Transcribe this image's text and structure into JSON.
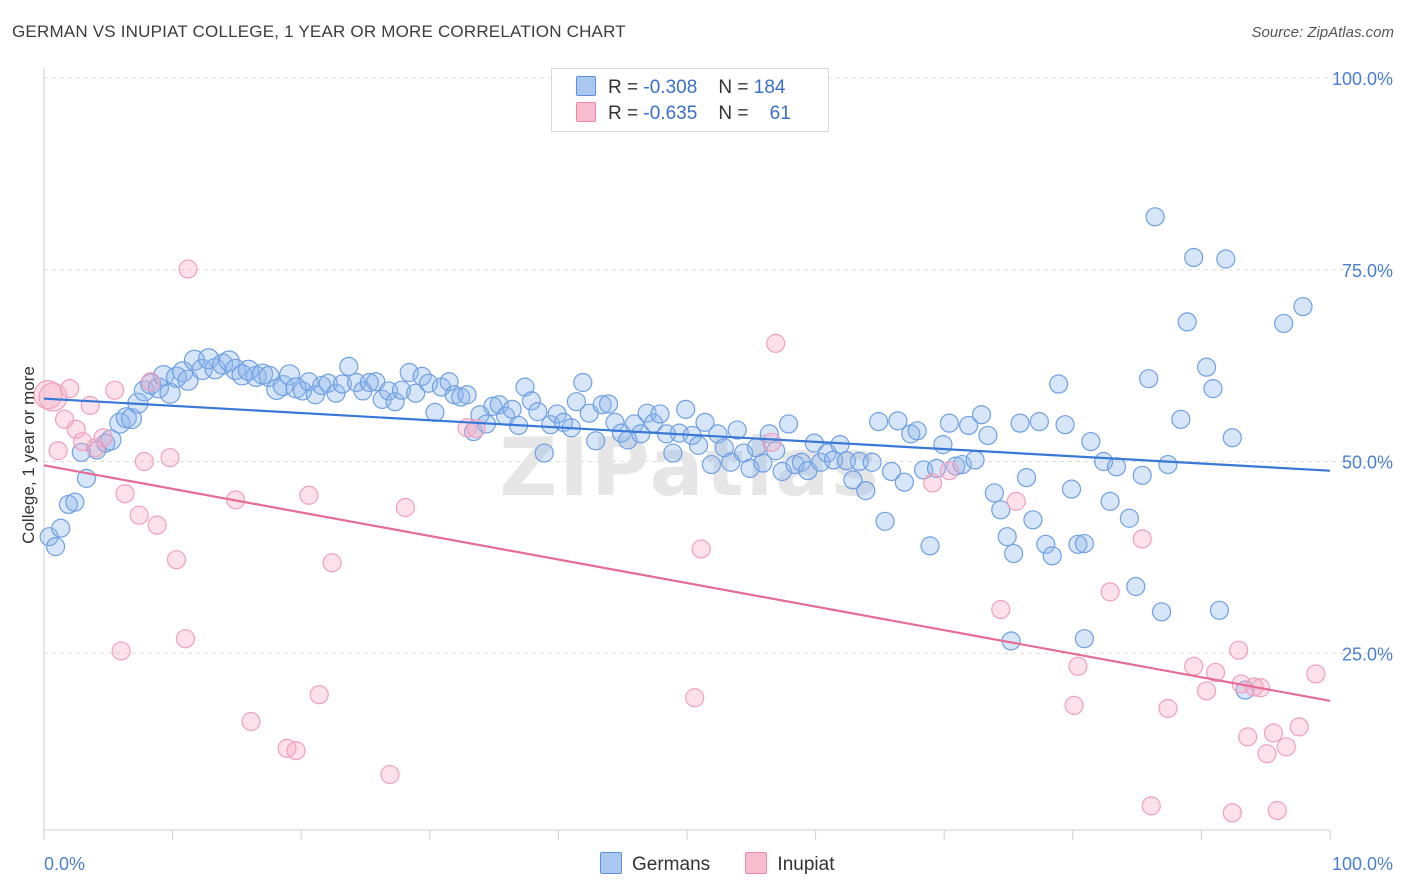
{
  "title": "GERMAN VS INUPIAT COLLEGE, 1 YEAR OR MORE CORRELATION CHART",
  "source": "Source: ZipAtlas.com",
  "watermark": "ZIPatlas",
  "legend": {
    "rows": [
      {
        "r_label": "R =",
        "r_value": "-0.308",
        "n_label": "N =",
        "n_value": "184",
        "color": "#a9c7ef",
        "border": "#5b8fd9"
      },
      {
        "r_label": "R =",
        "r_value": "-0.635",
        "n_label": "N =",
        "n_value": "61",
        "color": "#f7bccd",
        "border": "#e88aa6"
      }
    ]
  },
  "bottom_legend": [
    {
      "label": "Germans",
      "color": "#a9c7ef",
      "border": "#5b8fd9"
    },
    {
      "label": "Inupiat",
      "color": "#f7bccd",
      "border": "#e88aa6"
    }
  ],
  "chart_data": {
    "type": "scatter",
    "title": "GERMAN VS INUPIAT COLLEGE, 1 YEAR OR MORE CORRELATION CHART",
    "xlabel": "",
    "ylabel": "College, 1 year or more",
    "x_tick_labels": [
      "0.0%",
      "100.0%"
    ],
    "y_tick_labels": [
      "100.0%",
      "75.0%",
      "50.0%",
      "25.0%"
    ],
    "xlim": [
      0,
      100
    ],
    "ylim": [
      0,
      100
    ],
    "grid": true,
    "series": [
      {
        "name": "Germans",
        "color": "#6fa0e4",
        "trend": {
          "x": [
            0,
            100
          ],
          "y": [
            58.2,
            48.8
          ],
          "color": "#3a78d6"
        },
        "points": [
          [
            0.4,
            40.2
          ],
          [
            0.9,
            38.9
          ],
          [
            1.3,
            41.3
          ],
          [
            1.9,
            44.4
          ],
          [
            2.4,
            44.7
          ],
          [
            2.9,
            51.2
          ],
          [
            3.3,
            47.8
          ],
          [
            4.1,
            51.5
          ],
          [
            4.8,
            52.4
          ],
          [
            5.2,
            52.8
          ],
          [
            5.9,
            55.0
          ],
          [
            6.4,
            55.7
          ],
          [
            6.8,
            55.6
          ],
          [
            7.3,
            57.6
          ],
          [
            7.8,
            59.2
          ],
          [
            8.3,
            60.1
          ],
          [
            8.9,
            59.6
          ],
          [
            9.3,
            61.2
          ],
          [
            9.8,
            58.9
          ],
          [
            10.3,
            61.0
          ],
          [
            10.8,
            61.7
          ],
          [
            11.2,
            60.6
          ],
          [
            11.7,
            63.2
          ],
          [
            12.3,
            62.0
          ],
          [
            12.8,
            63.4
          ],
          [
            13.3,
            62.1
          ],
          [
            13.9,
            62.7
          ],
          [
            14.4,
            63.1
          ],
          [
            14.9,
            62.0
          ],
          [
            15.4,
            61.3
          ],
          [
            15.9,
            61.9
          ],
          [
            16.5,
            61.1
          ],
          [
            17.0,
            61.4
          ],
          [
            17.5,
            61.1
          ],
          [
            18.1,
            59.4
          ],
          [
            18.6,
            59.9
          ],
          [
            19.1,
            61.3
          ],
          [
            19.6,
            59.6
          ],
          [
            20.1,
            59.2
          ],
          [
            20.6,
            60.4
          ],
          [
            21.1,
            58.7
          ],
          [
            21.6,
            59.9
          ],
          [
            22.1,
            60.2
          ],
          [
            22.7,
            58.9
          ],
          [
            23.2,
            60.1
          ],
          [
            23.7,
            62.4
          ],
          [
            24.3,
            60.3
          ],
          [
            24.8,
            59.2
          ],
          [
            25.3,
            60.3
          ],
          [
            25.8,
            60.4
          ],
          [
            26.3,
            58.1
          ],
          [
            26.8,
            59.2
          ],
          [
            27.3,
            57.8
          ],
          [
            27.8,
            59.3
          ],
          [
            28.4,
            61.6
          ],
          [
            28.9,
            58.9
          ],
          [
            29.4,
            61.1
          ],
          [
            29.9,
            60.2
          ],
          [
            30.4,
            56.4
          ],
          [
            30.9,
            59.7
          ],
          [
            31.5,
            60.4
          ],
          [
            31.9,
            58.7
          ],
          [
            32.4,
            58.4
          ],
          [
            32.9,
            58.7
          ],
          [
            33.4,
            53.9
          ],
          [
            33.9,
            56.1
          ],
          [
            34.4,
            54.9
          ],
          [
            34.9,
            57.2
          ],
          [
            35.4,
            57.4
          ],
          [
            35.9,
            55.9
          ],
          [
            36.4,
            56.8
          ],
          [
            36.9,
            54.7
          ],
          [
            37.4,
            59.7
          ],
          [
            37.9,
            57.9
          ],
          [
            38.4,
            56.5
          ],
          [
            38.9,
            51.1
          ],
          [
            39.4,
            54.8
          ],
          [
            39.9,
            56.2
          ],
          [
            40.4,
            55.1
          ],
          [
            41.0,
            54.4
          ],
          [
            41.4,
            57.8
          ],
          [
            41.9,
            60.3
          ],
          [
            42.4,
            56.3
          ],
          [
            42.9,
            52.7
          ],
          [
            43.4,
            57.4
          ],
          [
            43.9,
            57.5
          ],
          [
            44.4,
            55.1
          ],
          [
            44.9,
            53.7
          ],
          [
            45.4,
            52.8
          ],
          [
            45.9,
            54.9
          ],
          [
            46.4,
            53.6
          ],
          [
            46.9,
            56.3
          ],
          [
            47.4,
            55.0
          ],
          [
            47.9,
            56.2
          ],
          [
            48.4,
            53.6
          ],
          [
            48.9,
            51.1
          ],
          [
            49.4,
            53.7
          ],
          [
            49.9,
            56.8
          ],
          [
            50.4,
            53.4
          ],
          [
            50.9,
            52.1
          ],
          [
            51.4,
            55.1
          ],
          [
            51.9,
            49.6
          ],
          [
            52.4,
            53.6
          ],
          [
            52.9,
            51.8
          ],
          [
            53.4,
            49.9
          ],
          [
            53.9,
            54.1
          ],
          [
            54.4,
            51.1
          ],
          [
            54.9,
            49.1
          ],
          [
            55.4,
            51.8
          ],
          [
            55.9,
            49.8
          ],
          [
            56.4,
            53.6
          ],
          [
            56.9,
            51.4
          ],
          [
            57.4,
            48.7
          ],
          [
            57.9,
            54.9
          ],
          [
            58.4,
            49.6
          ],
          [
            58.9,
            49.9
          ],
          [
            59.4,
            48.8
          ],
          [
            59.9,
            52.4
          ],
          [
            60.4,
            49.9
          ],
          [
            60.9,
            51.1
          ],
          [
            61.4,
            50.2
          ],
          [
            61.9,
            52.2
          ],
          [
            62.4,
            50.1
          ],
          [
            62.9,
            47.6
          ],
          [
            63.4,
            50.0
          ],
          [
            63.9,
            46.2
          ],
          [
            64.4,
            49.9
          ],
          [
            64.9,
            55.2
          ],
          [
            65.4,
            42.2
          ],
          [
            65.9,
            48.7
          ],
          [
            66.4,
            55.3
          ],
          [
            66.9,
            47.3
          ],
          [
            67.4,
            53.6
          ],
          [
            67.9,
            54.0
          ],
          [
            68.4,
            48.9
          ],
          [
            68.9,
            39.0
          ],
          [
            69.4,
            49.1
          ],
          [
            69.9,
            52.2
          ],
          [
            70.4,
            55.0
          ],
          [
            70.9,
            49.4
          ],
          [
            71.4,
            49.6
          ],
          [
            71.9,
            54.7
          ],
          [
            72.4,
            50.2
          ],
          [
            72.9,
            56.1
          ],
          [
            73.4,
            53.4
          ],
          [
            73.9,
            45.9
          ],
          [
            74.4,
            43.7
          ],
          [
            74.9,
            40.2
          ],
          [
            75.4,
            38.0
          ],
          [
            75.9,
            55.0
          ],
          [
            76.4,
            47.9
          ],
          [
            76.9,
            42.4
          ],
          [
            77.4,
            55.2
          ],
          [
            77.9,
            39.2
          ],
          [
            78.4,
            37.7
          ],
          [
            78.9,
            60.1
          ],
          [
            79.4,
            54.8
          ],
          [
            79.9,
            46.4
          ],
          [
            80.4,
            39.2
          ],
          [
            80.9,
            39.3
          ],
          [
            81.4,
            52.6
          ],
          [
            82.4,
            50.0
          ],
          [
            82.9,
            44.8
          ],
          [
            83.4,
            49.3
          ],
          [
            84.4,
            42.6
          ],
          [
            84.9,
            33.7
          ],
          [
            85.4,
            48.2
          ],
          [
            85.9,
            60.8
          ],
          [
            86.4,
            81.9
          ],
          [
            86.9,
            30.4
          ],
          [
            87.4,
            49.6
          ],
          [
            88.4,
            55.5
          ],
          [
            88.9,
            68.2
          ],
          [
            89.4,
            76.6
          ],
          [
            90.4,
            62.3
          ],
          [
            90.9,
            59.5
          ],
          [
            91.4,
            30.6
          ],
          [
            91.9,
            76.4
          ],
          [
            92.4,
            53.1
          ],
          [
            93.4,
            20.2
          ],
          [
            96.4,
            68.0
          ],
          [
            97.9,
            70.2
          ],
          [
            80.9,
            26.9
          ],
          [
            75.2,
            26.6
          ]
        ]
      },
      {
        "name": "Inupiat",
        "color": "#f2a3bb",
        "trend": {
          "x": [
            0,
            100
          ],
          "y": [
            49.5,
            18.8
          ],
          "color": "#e46c96"
        },
        "points": [
          [
            0.3,
            58.7
          ],
          [
            0.7,
            58.4
          ],
          [
            1.1,
            51.4
          ],
          [
            1.6,
            55.5
          ],
          [
            2.0,
            59.5
          ],
          [
            2.5,
            54.2
          ],
          [
            3.0,
            52.6
          ],
          [
            3.6,
            57.3
          ],
          [
            4.0,
            51.8
          ],
          [
            4.6,
            53.1
          ],
          [
            5.5,
            59.3
          ],
          [
            6.3,
            45.8
          ],
          [
            6.0,
            25.3
          ],
          [
            7.4,
            43.0
          ],
          [
            7.8,
            50.0
          ],
          [
            8.3,
            60.4
          ],
          [
            8.8,
            41.7
          ],
          [
            9.8,
            50.5
          ],
          [
            10.3,
            37.2
          ],
          [
            11.0,
            26.9
          ],
          [
            11.2,
            75.1
          ],
          [
            14.9,
            45.0
          ],
          [
            16.1,
            16.1
          ],
          [
            18.9,
            12.6
          ],
          [
            19.6,
            12.3
          ],
          [
            20.6,
            45.6
          ],
          [
            21.4,
            19.6
          ],
          [
            22.4,
            36.8
          ],
          [
            26.9,
            9.2
          ],
          [
            28.1,
            44.0
          ],
          [
            32.9,
            54.4
          ],
          [
            33.6,
            54.3
          ],
          [
            50.6,
            19.2
          ],
          [
            51.1,
            38.6
          ],
          [
            56.6,
            52.5
          ],
          [
            56.9,
            65.4
          ],
          [
            69.1,
            47.2
          ],
          [
            70.4,
            48.8
          ],
          [
            74.4,
            30.7
          ],
          [
            75.6,
            44.8
          ],
          [
            80.1,
            18.2
          ],
          [
            80.4,
            23.3
          ],
          [
            82.9,
            33.0
          ],
          [
            85.4,
            39.9
          ],
          [
            86.1,
            5.1
          ],
          [
            87.4,
            17.8
          ],
          [
            89.4,
            23.3
          ],
          [
            90.4,
            20.1
          ],
          [
            91.1,
            22.5
          ],
          [
            92.4,
            4.2
          ],
          [
            92.9,
            25.4
          ],
          [
            93.1,
            21.0
          ],
          [
            93.6,
            14.1
          ],
          [
            94.1,
            20.6
          ],
          [
            94.6,
            20.5
          ],
          [
            95.1,
            11.9
          ],
          [
            95.6,
            14.6
          ],
          [
            95.9,
            4.5
          ],
          [
            96.6,
            12.8
          ],
          [
            97.6,
            15.4
          ],
          [
            98.9,
            22.3
          ]
        ]
      }
    ]
  }
}
